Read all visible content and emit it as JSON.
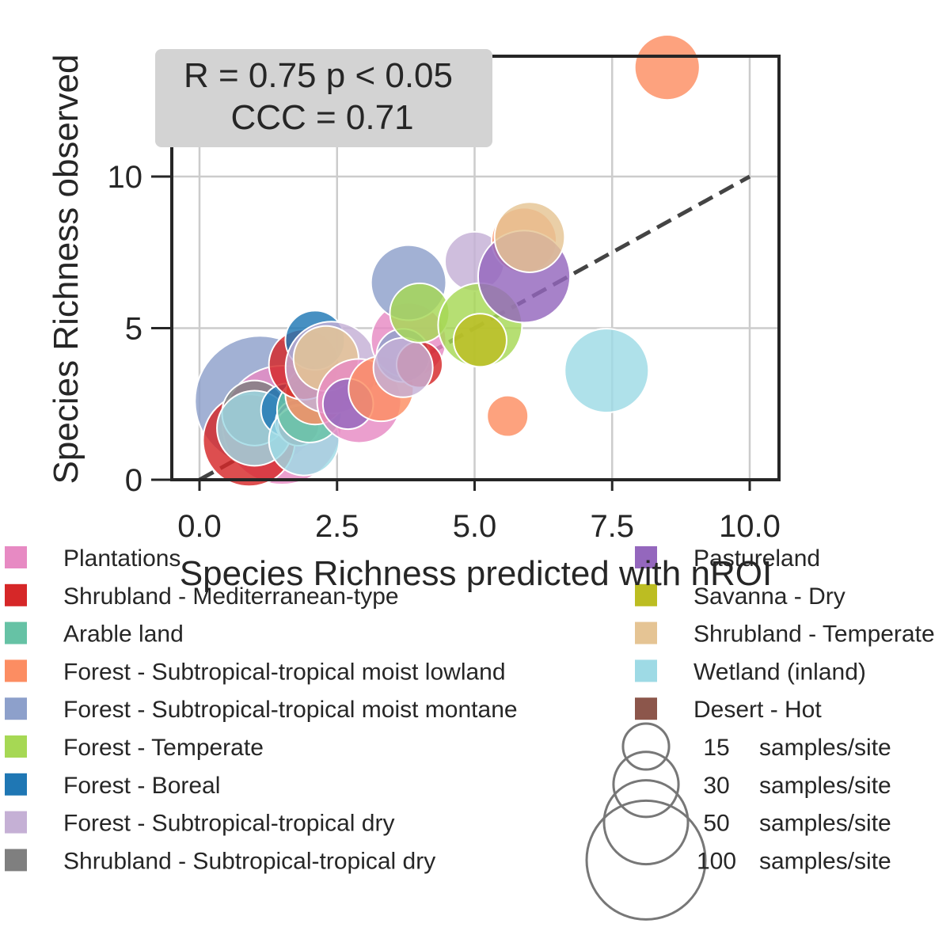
{
  "chart_data": {
    "type": "scatter",
    "xlabel": "Species Richness predicted with nROI",
    "ylabel": "Species Richness observed",
    "xlim": [
      -1.0,
      10.5
    ],
    "ylim": [
      0,
      14.5
    ],
    "xticks": [
      0.0,
      2.5,
      5.0,
      7.5,
      10.0
    ],
    "xtick_labels": [
      "0.0",
      "2.5",
      "5.0",
      "7.5",
      "10.0"
    ],
    "yticks": [
      0,
      5,
      10
    ],
    "ytick_labels": [
      "0",
      "5",
      "10"
    ],
    "grid": true,
    "reference_line": {
      "style": "dashed",
      "color": "#444444",
      "from": [
        0,
        0
      ],
      "to": [
        10,
        10
      ]
    },
    "annotation": {
      "line1": "R = 0.75 p < 0.05",
      "line2": "CCC = 0.71"
    },
    "categories": [
      {
        "name": "Plantations",
        "color": "#e78ac3"
      },
      {
        "name": "Shrubland - Mediterranean-type",
        "color": "#d62728"
      },
      {
        "name": "Arable land",
        "color": "#66c2a5"
      },
      {
        "name": "Forest - Subtropical-tropical moist lowland",
        "color": "#fc8d62"
      },
      {
        "name": "Forest - Subtropical-tropical moist montane",
        "color": "#8da0cb"
      },
      {
        "name": "Forest - Temperate",
        "color": "#a6d854"
      },
      {
        "name": "Forest - Boreal",
        "color": "#1f77b4"
      },
      {
        "name": "Forest - Subtropical-tropical dry",
        "color": "#c5b0d5"
      },
      {
        "name": "Shrubland - Subtropical-tropical dry",
        "color": "#7f7f7f"
      },
      {
        "name": "Pastureland",
        "color": "#9467bd"
      },
      {
        "name": "Savanna - Dry",
        "color": "#bcbd22"
      },
      {
        "name": "Shrubland - Temperate",
        "color": "#e5c494"
      },
      {
        "name": "Wetland (inland)",
        "color": "#9edae5"
      },
      {
        "name": "Desert - Hot",
        "color": "#8c564b"
      }
    ],
    "size_legend": [
      {
        "n": 15,
        "label": "samples/site"
      },
      {
        "n": 30,
        "label": "samples/site"
      },
      {
        "n": 50,
        "label": "samples/site"
      },
      {
        "n": 100,
        "label": "samples/site"
      }
    ],
    "points": [
      {
        "x": 1.1,
        "y": 2.6,
        "cat": 4,
        "n": 120
      },
      {
        "x": 1.5,
        "y": 1.8,
        "cat": 0,
        "n": 100
      },
      {
        "x": 0.9,
        "y": 1.3,
        "cat": 1,
        "n": 60
      },
      {
        "x": 1.0,
        "y": 2.2,
        "cat": 8,
        "n": 30
      },
      {
        "x": 1.0,
        "y": 1.7,
        "cat": 12,
        "n": 40
      },
      {
        "x": 1.6,
        "y": 2.3,
        "cat": 6,
        "n": 20
      },
      {
        "x": 1.8,
        "y": 1.9,
        "cat": 9,
        "n": 15
      },
      {
        "x": 1.8,
        "y": 1.8,
        "cat": 13,
        "n": 12
      },
      {
        "x": 1.9,
        "y": 1.3,
        "cat": 12,
        "n": 35
      },
      {
        "x": 2.0,
        "y": 2.3,
        "cat": 2,
        "n": 30
      },
      {
        "x": 2.1,
        "y": 2.8,
        "cat": 3,
        "n": 25
      },
      {
        "x": 1.9,
        "y": 3.8,
        "cat": 1,
        "n": 35
      },
      {
        "x": 2.1,
        "y": 4.6,
        "cat": 6,
        "n": 25
      },
      {
        "x": 2.4,
        "y": 3.7,
        "cat": 7,
        "n": 60
      },
      {
        "x": 2.3,
        "y": 4.0,
        "cat": 11,
        "n": 30
      },
      {
        "x": 2.9,
        "y": 2.6,
        "cat": 0,
        "n": 50
      },
      {
        "x": 2.7,
        "y": 2.5,
        "cat": 9,
        "n": 18
      },
      {
        "x": 3.3,
        "y": 3.0,
        "cat": 3,
        "n": 30
      },
      {
        "x": 3.8,
        "y": 4.6,
        "cat": 0,
        "n": 40
      },
      {
        "x": 3.7,
        "y": 4.1,
        "cat": 4,
        "n": 20
      },
      {
        "x": 4.0,
        "y": 3.8,
        "cat": 1,
        "n": 15
      },
      {
        "x": 3.7,
        "y": 3.7,
        "cat": 7,
        "n": 25
      },
      {
        "x": 3.8,
        "y": 6.5,
        "cat": 4,
        "n": 40
      },
      {
        "x": 4.0,
        "y": 5.5,
        "cat": 5,
        "n": 25
      },
      {
        "x": 5.0,
        "y": 7.2,
        "cat": 7,
        "n": 25
      },
      {
        "x": 5.1,
        "y": 5.1,
        "cat": 5,
        "n": 50
      },
      {
        "x": 5.1,
        "y": 4.6,
        "cat": 10,
        "n": 20
      },
      {
        "x": 5.9,
        "y": 7.9,
        "cat": 3,
        "n": 30
      },
      {
        "x": 5.9,
        "y": 6.7,
        "cat": 9,
        "n": 60
      },
      {
        "x": 6.0,
        "y": 8.0,
        "cat": 11,
        "n": 35
      },
      {
        "x": 5.6,
        "y": 2.1,
        "cat": 3,
        "n": 12
      },
      {
        "x": 7.4,
        "y": 3.6,
        "cat": 12,
        "n": 50
      },
      {
        "x": 8.5,
        "y": 13.6,
        "cat": 3,
        "n": 30
      }
    ]
  }
}
